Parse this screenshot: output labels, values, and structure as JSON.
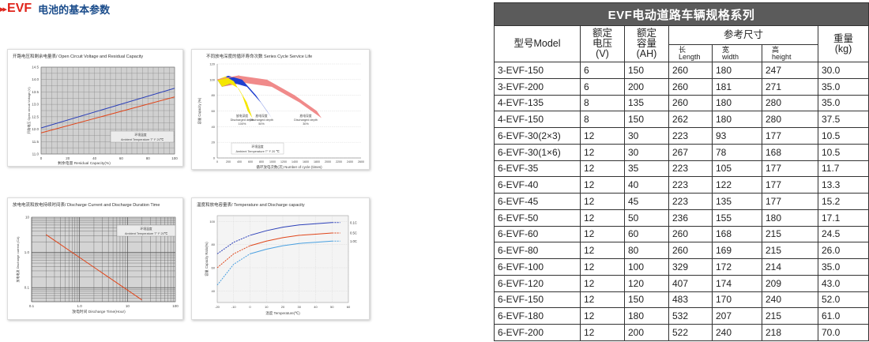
{
  "header": {
    "arrows": "▸▸",
    "brand": "EVF",
    "title": "电池的基本参数"
  },
  "charts": {
    "ocv": {
      "caption": "开路电压和剩余电量表/ Open Circuit Voltage and Residual Capacity",
      "ylabel": "开路电压 Open circuit Voltage (V)",
      "xlabel": "剩余电量 Residual Capacity(%)",
      "note1": "环境温度",
      "note2": "Ambient Temperature T°  F 20℃",
      "yticks": [
        "11.0",
        "11.5",
        "12.0",
        "12.5",
        "13.0",
        "13.5",
        "14.0",
        "14.5"
      ],
      "xticks": [
        "0",
        "20",
        "40",
        "60",
        "80",
        "100"
      ],
      "chart_data": {
        "type": "line",
        "xlim": [
          0,
          100
        ],
        "ylim": [
          11.0,
          14.5
        ],
        "series": [
          {
            "color": "#2b3fb8",
            "x": [
              0,
              100
            ],
            "y": [
              12.05,
              13.65
            ]
          },
          {
            "color": "#e0461b",
            "x": [
              0,
              100
            ],
            "y": [
              11.85,
              13.3
            ]
          }
        ]
      }
    },
    "cycle": {
      "caption": "不同放电深度的循环寿命次数  Series Cycle Service Life",
      "ylabel": "容量 Capacity (%)",
      "xlabel": "循环放电次数(次) Number of cycle (times)",
      "note1": "环境温度",
      "note2": "Ambient Temperature T° F 20 ℃",
      "labels": [
        {
          "l1": "放电深度",
          "l2": "Discharged depth",
          "l3": "100%"
        },
        {
          "l1": "放电深度",
          "l2": "Discharged depth",
          "l3": "50%"
        },
        {
          "l1": "放电深度",
          "l2": "Discharged depth",
          "l3": "30%"
        }
      ],
      "yticks": [
        "0",
        "20",
        "40",
        "60",
        "80",
        "100",
        "120"
      ],
      "xticks": [
        "0",
        "200",
        "400",
        "600",
        "800",
        "1000",
        "1200",
        "1400",
        "1600",
        "1800",
        "2000",
        "2200",
        "2400",
        "2600"
      ],
      "chart_data": {
        "type": "area",
        "xlim": [
          0,
          2600
        ],
        "ylim": [
          0,
          120
        ],
        "series": [
          {
            "color": "#f5e600",
            "x": [
              0,
              150,
              300,
              450,
              550
            ],
            "y": [
              100,
              104,
              98,
              80,
              60
            ]
          },
          {
            "color": "#1f3fd0",
            "x": [
              0,
              200,
              450,
              700,
              900
            ],
            "y": [
              100,
              105,
              100,
              80,
              60
            ]
          },
          {
            "color": "#f08a8a",
            "x": [
              0,
              400,
              900,
              1400,
              1800
            ],
            "y": [
              100,
              105,
              100,
              80,
              60
            ]
          }
        ]
      }
    },
    "dis": {
      "caption": "放电电流和放电持续时间表/ Discharge Current and Discharge Duration Time",
      "ylabel": "放电电流 Discharge current (CA)",
      "xlabel": "放电时间 Discharge Time(Hour)",
      "note1": "环境温度",
      "note2": "Ambient Temperature T°  F 20℃",
      "yticks": [
        "0.1",
        "1.0",
        "10"
      ],
      "xticks": [
        "0.1",
        "1.0",
        "10",
        "100"
      ],
      "chart_data": {
        "type": "line",
        "xscale": "log",
        "yscale": "log",
        "xlim": [
          0.1,
          100
        ],
        "ylim": [
          0.04,
          10
        ],
        "series": [
          {
            "color": "#e0461b",
            "x": [
              0.2,
              20
            ],
            "y": [
              3.2,
              0.045
            ]
          }
        ]
      }
    },
    "temp": {
      "caption": "温度和放电容量表/ Temperature and Discharge capacity",
      "ylabel": "容量  Capacity Ratio(%)",
      "xlabel": "温度  Temperature(℃)",
      "legend": [
        "0.1C",
        "0.5C",
        "1.0C"
      ],
      "yticks": [
        "40",
        "60",
        "80",
        "100"
      ],
      "xticks": [
        "-20",
        "-10",
        "0",
        "10",
        "20",
        "30",
        "40",
        "50",
        "60"
      ],
      "chart_data": {
        "type": "line",
        "xlim": [
          -20,
          60
        ],
        "ylim": [
          30,
          105
        ],
        "series": [
          {
            "name": "0.1C",
            "color": "#2b3fb8",
            "x": [
              -20,
              -10,
              0,
              10,
              20,
              30,
              40,
              50,
              55
            ],
            "y": [
              72,
              82,
              88,
              92,
              95,
              97,
              98,
              99,
              99
            ]
          },
          {
            "name": "0.5C",
            "color": "#e0461b",
            "x": [
              -20,
              -10,
              0,
              10,
              20,
              30,
              40,
              50,
              55
            ],
            "y": [
              60,
              72,
              79,
              83,
              86,
              88,
              89,
              90,
              90
            ]
          },
          {
            "name": "1.0C",
            "color": "#4aa0e0",
            "x": [
              -20,
              -10,
              0,
              10,
              20,
              30,
              40,
              50,
              55
            ],
            "y": [
              45,
              63,
              72,
              76,
              79,
              81,
              82,
              83,
              83
            ]
          }
        ]
      }
    }
  },
  "table": {
    "title": "EVF电动道路车辆规格系列",
    "headers": {
      "model": "型号Model",
      "volt": [
        "额定",
        "电压",
        "(V)"
      ],
      "cap": [
        "额定",
        "容量",
        "(AH)"
      ],
      "dims": "参考尺寸",
      "len": [
        "长",
        "Length"
      ],
      "wid": [
        "宽",
        "width"
      ],
      "hgt": [
        "高",
        "height"
      ],
      "weight": [
        "重量",
        "(kg)"
      ]
    },
    "rows": [
      [
        "3-EVF-150",
        "6",
        "150",
        "260",
        "180",
        "247",
        "30.0"
      ],
      [
        "3-EVF-200",
        "6",
        "200",
        "260",
        "181",
        "271",
        "35.0"
      ],
      [
        "4-EVF-135",
        "8",
        "135",
        "260",
        "180",
        "280",
        "35.0"
      ],
      [
        "4-EVF-150",
        "8",
        "150",
        "262",
        "180",
        "280",
        "37.5"
      ],
      [
        "6-EVF-30(2×3)",
        "12",
        "30",
        "223",
        "93",
        "177",
        "10.5"
      ],
      [
        "6-EVF-30(1×6)",
        "12",
        "30",
        "267",
        "78",
        "168",
        "10.5"
      ],
      [
        "6-EVF-35",
        "12",
        "35",
        "223",
        "105",
        "177",
        "11.7"
      ],
      [
        "6-EVF-40",
        "12",
        "40",
        "223",
        "122",
        "177",
        "13.3"
      ],
      [
        "6-EVF-45",
        "12",
        "45",
        "223",
        "135",
        "177",
        "15.2"
      ],
      [
        "6-EVF-50",
        "12",
        "50",
        "236",
        "155",
        "180",
        "17.1"
      ],
      [
        "6-EVF-60",
        "12",
        "60",
        "260",
        "168",
        "215",
        "24.5"
      ],
      [
        "6-EVF-80",
        "12",
        "80",
        "260",
        "169",
        "215",
        "26.0"
      ],
      [
        "6-EVF-100",
        "12",
        "100",
        "329",
        "172",
        "214",
        "35.0"
      ],
      [
        "6-EVF-120",
        "12",
        "120",
        "407",
        "174",
        "209",
        "43.0"
      ],
      [
        "6-EVF-150",
        "12",
        "150",
        "483",
        "170",
        "240",
        "52.0"
      ],
      [
        "6-EVF-180",
        "12",
        "180",
        "532",
        "207",
        "215",
        "61.0"
      ],
      [
        "6-EVF-200",
        "12",
        "200",
        "522",
        "240",
        "218",
        "70.0"
      ]
    ]
  }
}
